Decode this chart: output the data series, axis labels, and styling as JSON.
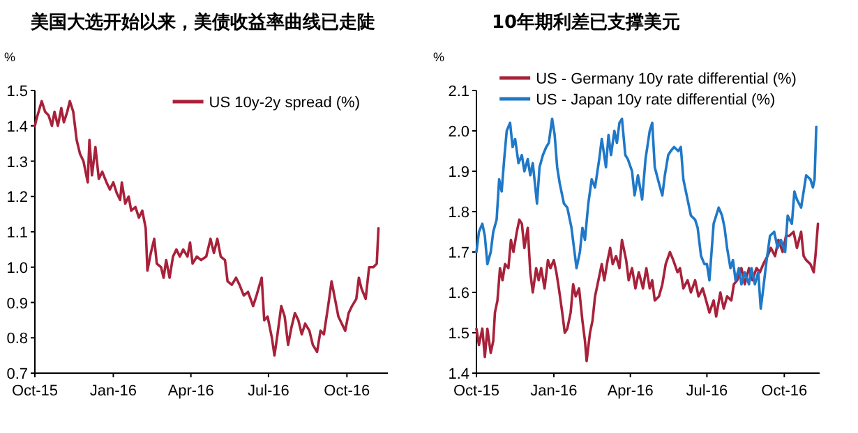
{
  "chart_data": [
    {
      "type": "line",
      "title": "美国大选开始以来，美债收益率曲线已走陡",
      "ylabel": "%",
      "xlim": [
        "2015-10-01",
        "2016-11-18"
      ],
      "ylim": [
        0.7,
        1.5
      ],
      "xticks": [
        {
          "value": "2015-10-01",
          "label": "Oct-15"
        },
        {
          "value": "2016-01-01",
          "label": "Jan-16"
        },
        {
          "value": "2016-04-01",
          "label": "Apr-16"
        },
        {
          "value": "2016-07-01",
          "label": "Jul-16"
        },
        {
          "value": "2016-10-01",
          "label": "Oct-16"
        }
      ],
      "yticks": [
        {
          "value": 0.7,
          "label": "0.7"
        },
        {
          "value": 0.8,
          "label": "0.8"
        },
        {
          "value": 0.9,
          "label": "0.9"
        },
        {
          "value": 1.0,
          "label": "1.0"
        },
        {
          "value": 1.1,
          "label": "1.1"
        },
        {
          "value": 1.2,
          "label": "1.2"
        },
        {
          "value": 1.3,
          "label": "1.3"
        },
        {
          "value": 1.4,
          "label": "1.4"
        },
        {
          "value": 1.5,
          "label": "1.5"
        }
      ],
      "grid": false,
      "legend": "top right",
      "series": [
        {
          "name": "US 10y-2y spread (%)",
          "color": "#a8213a",
          "x": [
            "2015-10-01",
            "2015-10-03",
            "2015-10-09",
            "2015-10-13",
            "2015-10-17",
            "2015-10-21",
            "2015-10-24",
            "2015-10-28",
            "2015-11-01",
            "2015-11-04",
            "2015-11-08",
            "2015-11-11",
            "2015-11-15",
            "2015-11-19",
            "2015-11-23",
            "2015-11-27",
            "2015-12-02",
            "2015-12-04",
            "2015-12-07",
            "2015-12-11",
            "2015-12-15",
            "2015-12-19",
            "2015-12-24",
            "2015-12-28",
            "2016-01-01",
            "2016-01-05",
            "2016-01-09",
            "2016-01-11",
            "2016-01-15",
            "2016-01-19",
            "2016-01-22",
            "2016-01-27",
            "2016-01-31",
            "2016-02-04",
            "2016-02-08",
            "2016-02-10",
            "2016-02-14",
            "2016-02-18",
            "2016-02-21",
            "2016-02-26",
            "2016-02-29",
            "2016-03-03",
            "2016-03-07",
            "2016-03-11",
            "2016-03-15",
            "2016-03-19",
            "2016-03-23",
            "2016-03-28",
            "2016-03-31",
            "2016-04-03",
            "2016-04-08",
            "2016-04-13",
            "2016-04-19",
            "2016-04-24",
            "2016-04-28",
            "2016-05-02",
            "2016-05-06",
            "2016-05-11",
            "2016-05-14",
            "2016-05-19",
            "2016-05-24",
            "2016-05-28",
            "2016-06-02",
            "2016-06-07",
            "2016-06-13",
            "2016-06-17",
            "2016-06-23",
            "2016-06-26",
            "2016-06-30",
            "2016-07-05",
            "2016-07-08",
            "2016-07-11",
            "2016-07-16",
            "2016-07-20",
            "2016-07-24",
            "2016-07-28",
            "2016-08-01",
            "2016-08-05",
            "2016-08-09",
            "2016-08-13",
            "2016-08-18",
            "2016-08-22",
            "2016-08-27",
            "2016-08-31",
            "2016-09-04",
            "2016-09-09",
            "2016-09-13",
            "2016-09-17",
            "2016-09-21",
            "2016-09-25",
            "2016-09-29",
            "2016-10-03",
            "2016-10-07",
            "2016-10-12",
            "2016-10-15",
            "2016-10-18",
            "2016-10-23",
            "2016-10-27",
            "2016-11-01",
            "2016-11-05",
            "2016-11-07"
          ],
          "values": [
            1.4,
            1.42,
            1.47,
            1.44,
            1.43,
            1.4,
            1.44,
            1.4,
            1.45,
            1.41,
            1.44,
            1.47,
            1.44,
            1.36,
            1.32,
            1.3,
            1.24,
            1.36,
            1.26,
            1.34,
            1.25,
            1.27,
            1.24,
            1.22,
            1.24,
            1.21,
            1.19,
            1.24,
            1.18,
            1.2,
            1.16,
            1.17,
            1.14,
            1.16,
            1.11,
            0.99,
            1.04,
            1.08,
            1.01,
            1.0,
            0.97,
            1.02,
            0.97,
            1.03,
            1.05,
            1.03,
            1.05,
            1.03,
            1.07,
            1.01,
            1.03,
            1.02,
            1.03,
            1.08,
            1.04,
            1.08,
            1.03,
            1.02,
            0.96,
            0.95,
            0.97,
            0.95,
            0.92,
            0.93,
            0.89,
            0.92,
            0.97,
            0.85,
            0.86,
            0.8,
            0.75,
            0.8,
            0.89,
            0.86,
            0.78,
            0.83,
            0.87,
            0.85,
            0.81,
            0.84,
            0.82,
            0.78,
            0.76,
            0.82,
            0.81,
            0.89,
            0.96,
            0.91,
            0.86,
            0.84,
            0.82,
            0.87,
            0.89,
            0.91,
            0.97,
            0.94,
            0.91,
            1.0,
            1.0,
            1.01,
            1.11
          ]
        }
      ]
    },
    {
      "type": "line",
      "title": "10年期利差已支撑美元",
      "ylabel": "%",
      "xlim": [
        "2015-10-01",
        "2016-11-12"
      ],
      "ylim": [
        1.4,
        2.1
      ],
      "xticks": [
        {
          "value": "2015-10-01",
          "label": "Oct-15"
        },
        {
          "value": "2016-01-01",
          "label": "Jan-16"
        },
        {
          "value": "2016-04-01",
          "label": "Apr-16"
        },
        {
          "value": "2016-07-01",
          "label": "Jul-16"
        },
        {
          "value": "2016-10-01",
          "label": "Oct-16"
        }
      ],
      "yticks": [
        {
          "value": 1.4,
          "label": "1.4"
        },
        {
          "value": 1.5,
          "label": "1.5"
        },
        {
          "value": 1.6,
          "label": "1.6"
        },
        {
          "value": 1.7,
          "label": "1.7"
        },
        {
          "value": 1.8,
          "label": "1.8"
        },
        {
          "value": 1.9,
          "label": "1.9"
        },
        {
          "value": 2.0,
          "label": "2.0"
        },
        {
          "value": 2.1,
          "label": "2.1"
        }
      ],
      "grid": false,
      "legend": "top",
      "series": [
        {
          "name": "US - Germany 10y rate differential (%)",
          "color": "#a8213a",
          "x": [
            "2015-10-01",
            "2015-10-04",
            "2015-10-08",
            "2015-10-11",
            "2015-10-14",
            "2015-10-18",
            "2015-10-21",
            "2015-10-23",
            "2015-10-26",
            "2015-10-29",
            "2015-11-01",
            "2015-11-04",
            "2015-11-08",
            "2015-11-11",
            "2015-11-14",
            "2015-11-18",
            "2015-11-21",
            "2015-11-24",
            "2015-11-27",
            "2015-12-01",
            "2015-12-04",
            "2015-12-07",
            "2015-12-11",
            "2015-12-14",
            "2015-12-17",
            "2015-12-21",
            "2015-12-25",
            "2015-12-28",
            "2016-01-01",
            "2016-01-04",
            "2016-01-07",
            "2016-01-11",
            "2016-01-14",
            "2016-01-17",
            "2016-01-21",
            "2016-01-24",
            "2016-01-27",
            "2016-01-31",
            "2016-02-04",
            "2016-02-07",
            "2016-02-09",
            "2016-02-13",
            "2016-02-16",
            "2016-02-19",
            "2016-02-23",
            "2016-02-27",
            "2016-03-01",
            "2016-03-05",
            "2016-03-08",
            "2016-03-11",
            "2016-03-15",
            "2016-03-19",
            "2016-03-22",
            "2016-03-27",
            "2016-03-30",
            "2016-04-03",
            "2016-04-07",
            "2016-04-11",
            "2016-04-16",
            "2016-04-20",
            "2016-04-24",
            "2016-04-27",
            "2016-04-30",
            "2016-05-05",
            "2016-05-09",
            "2016-05-13",
            "2016-05-18",
            "2016-05-22",
            "2016-05-27",
            "2016-05-30",
            "2016-06-03",
            "2016-06-08",
            "2016-06-12",
            "2016-06-17",
            "2016-06-21",
            "2016-06-26",
            "2016-06-30",
            "2016-07-04",
            "2016-07-09",
            "2016-07-12",
            "2016-07-17",
            "2016-07-21",
            "2016-07-25",
            "2016-07-30",
            "2016-08-02",
            "2016-08-06",
            "2016-08-11",
            "2016-08-15",
            "2016-08-20",
            "2016-08-24",
            "2016-08-29",
            "2016-09-02",
            "2016-09-06",
            "2016-09-11",
            "2016-09-15",
            "2016-09-20",
            "2016-09-24",
            "2016-09-29",
            "2016-10-03",
            "2016-10-07",
            "2016-10-12",
            "2016-10-16",
            "2016-10-21",
            "2016-10-24",
            "2016-10-27",
            "2016-11-01",
            "2016-11-05",
            "2016-11-07",
            "2016-11-10"
          ],
          "values": [
            1.51,
            1.47,
            1.51,
            1.44,
            1.51,
            1.45,
            1.48,
            1.55,
            1.58,
            1.66,
            1.63,
            1.67,
            1.66,
            1.73,
            1.7,
            1.75,
            1.78,
            1.77,
            1.71,
            1.76,
            1.65,
            1.6,
            1.66,
            1.63,
            1.66,
            1.61,
            1.68,
            1.66,
            1.68,
            1.65,
            1.61,
            1.55,
            1.5,
            1.51,
            1.55,
            1.62,
            1.59,
            1.61,
            1.53,
            1.48,
            1.43,
            1.5,
            1.53,
            1.59,
            1.63,
            1.67,
            1.63,
            1.68,
            1.71,
            1.67,
            1.69,
            1.66,
            1.73,
            1.68,
            1.63,
            1.66,
            1.61,
            1.65,
            1.61,
            1.66,
            1.61,
            1.63,
            1.58,
            1.59,
            1.62,
            1.67,
            1.7,
            1.68,
            1.65,
            1.66,
            1.61,
            1.63,
            1.6,
            1.63,
            1.59,
            1.61,
            1.58,
            1.55,
            1.58,
            1.54,
            1.6,
            1.56,
            1.59,
            1.58,
            1.62,
            1.63,
            1.66,
            1.62,
            1.66,
            1.63,
            1.66,
            1.65,
            1.67,
            1.69,
            1.71,
            1.69,
            1.73,
            1.7,
            1.74,
            1.74,
            1.75,
            1.71,
            1.75,
            1.69,
            1.68,
            1.67,
            1.65,
            1.69,
            1.77
          ]
        },
        {
          "name": "US - Japan 10y rate differential (%)",
          "color": "#1f78c8",
          "x": [
            "2015-10-01",
            "2015-10-04",
            "2015-10-08",
            "2015-10-11",
            "2015-10-14",
            "2015-10-18",
            "2015-10-21",
            "2015-10-25",
            "2015-10-28",
            "2015-10-31",
            "2015-11-03",
            "2015-11-06",
            "2015-11-10",
            "2015-11-13",
            "2015-11-16",
            "2015-11-20",
            "2015-11-24",
            "2015-11-27",
            "2015-12-01",
            "2015-12-04",
            "2015-12-07",
            "2015-12-12",
            "2015-12-15",
            "2015-12-19",
            "2015-12-23",
            "2015-12-26",
            "2015-12-30",
            "2016-01-02",
            "2016-01-05",
            "2016-01-08",
            "2016-01-13",
            "2016-01-17",
            "2016-01-22",
            "2016-01-25",
            "2016-01-28",
            "2016-02-01",
            "2016-02-04",
            "2016-02-07",
            "2016-02-11",
            "2016-02-15",
            "2016-02-19",
            "2016-02-24",
            "2016-02-27",
            "2016-03-03",
            "2016-03-06",
            "2016-03-09",
            "2016-03-13",
            "2016-03-16",
            "2016-03-19",
            "2016-03-22",
            "2016-03-26",
            "2016-03-29",
            "2016-04-03",
            "2016-04-06",
            "2016-04-10",
            "2016-04-15",
            "2016-04-19",
            "2016-04-24",
            "2016-04-27",
            "2016-04-30",
            "2016-05-05",
            "2016-05-09",
            "2016-05-12",
            "2016-05-16",
            "2016-05-19",
            "2016-05-23",
            "2016-05-28",
            "2016-05-31",
            "2016-06-03",
            "2016-06-08",
            "2016-06-12",
            "2016-06-17",
            "2016-06-20",
            "2016-06-24",
            "2016-06-28",
            "2016-07-01",
            "2016-07-04",
            "2016-07-09",
            "2016-07-12",
            "2016-07-15",
            "2016-07-19",
            "2016-07-22",
            "2016-07-25",
            "2016-07-29",
            "2016-08-01",
            "2016-08-04",
            "2016-08-08",
            "2016-08-11",
            "2016-08-15",
            "2016-08-20",
            "2016-08-23",
            "2016-08-27",
            "2016-08-31",
            "2016-09-03",
            "2016-09-06",
            "2016-09-10",
            "2016-09-14",
            "2016-09-19",
            "2016-09-23",
            "2016-09-27",
            "2016-10-02",
            "2016-10-05",
            "2016-10-10",
            "2016-10-13",
            "2016-10-16",
            "2016-10-21",
            "2016-10-24",
            "2016-10-27",
            "2016-11-01",
            "2016-11-04",
            "2016-11-06",
            "2016-11-08"
          ],
          "values": [
            1.7,
            1.75,
            1.77,
            1.74,
            1.67,
            1.7,
            1.75,
            1.78,
            1.88,
            1.85,
            1.93,
            2.0,
            2.02,
            1.96,
            1.98,
            1.92,
            1.94,
            1.9,
            1.93,
            1.89,
            1.92,
            1.82,
            1.91,
            1.94,
            1.96,
            1.97,
            2.03,
            1.99,
            1.91,
            1.87,
            1.82,
            1.81,
            1.76,
            1.71,
            1.66,
            1.7,
            1.76,
            1.73,
            1.82,
            1.88,
            1.86,
            1.93,
            1.98,
            1.91,
            1.99,
            1.94,
            2.0,
            1.97,
            2.02,
            2.03,
            1.94,
            1.93,
            1.9,
            1.84,
            1.89,
            1.83,
            1.93,
            2.0,
            2.02,
            1.91,
            1.87,
            1.84,
            1.89,
            1.94,
            1.95,
            1.96,
            1.95,
            1.96,
            1.88,
            1.83,
            1.79,
            1.78,
            1.76,
            1.69,
            1.67,
            1.67,
            1.63,
            1.77,
            1.79,
            1.81,
            1.79,
            1.76,
            1.71,
            1.66,
            1.68,
            1.63,
            1.66,
            1.62,
            1.65,
            1.62,
            1.66,
            1.62,
            1.65,
            1.56,
            1.61,
            1.68,
            1.74,
            1.75,
            1.71,
            1.73,
            1.7,
            1.79,
            1.77,
            1.85,
            1.83,
            1.81,
            1.85,
            1.89,
            1.88,
            1.86,
            1.88,
            2.01
          ]
        }
      ]
    }
  ]
}
